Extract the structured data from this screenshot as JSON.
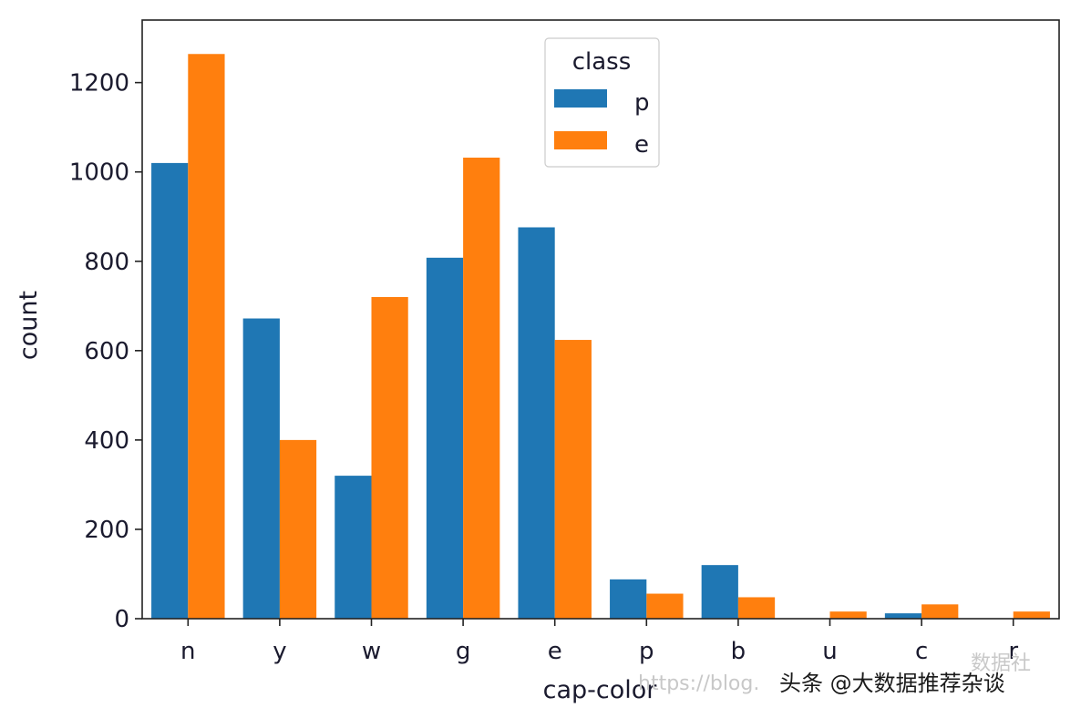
{
  "chart_data": {
    "type": "bar",
    "categories": [
      "n",
      "y",
      "w",
      "g",
      "e",
      "p",
      "b",
      "u",
      "c",
      "r"
    ],
    "series": [
      {
        "name": "p",
        "values": [
          1020,
          672,
          320,
          808,
          876,
          88,
          120,
          0,
          12,
          0
        ]
      },
      {
        "name": "e",
        "values": [
          1264,
          400,
          720,
          1032,
          624,
          56,
          48,
          16,
          32,
          16
        ]
      }
    ],
    "xlabel": "cap-color",
    "ylabel": "count",
    "ylim": [
      0,
      1340
    ],
    "yticks": [
      0,
      200,
      400,
      600,
      800,
      1000,
      1200
    ],
    "legend": {
      "title": "class",
      "placement": "top-center"
    },
    "grid": false,
    "colors": {
      "p": "#1f77b4",
      "e": "#ff7f0e"
    }
  },
  "watermark": {
    "main": "头条 @大数据推荐杂谈",
    "faint": "https://blog.",
    "corner": "数据社"
  }
}
